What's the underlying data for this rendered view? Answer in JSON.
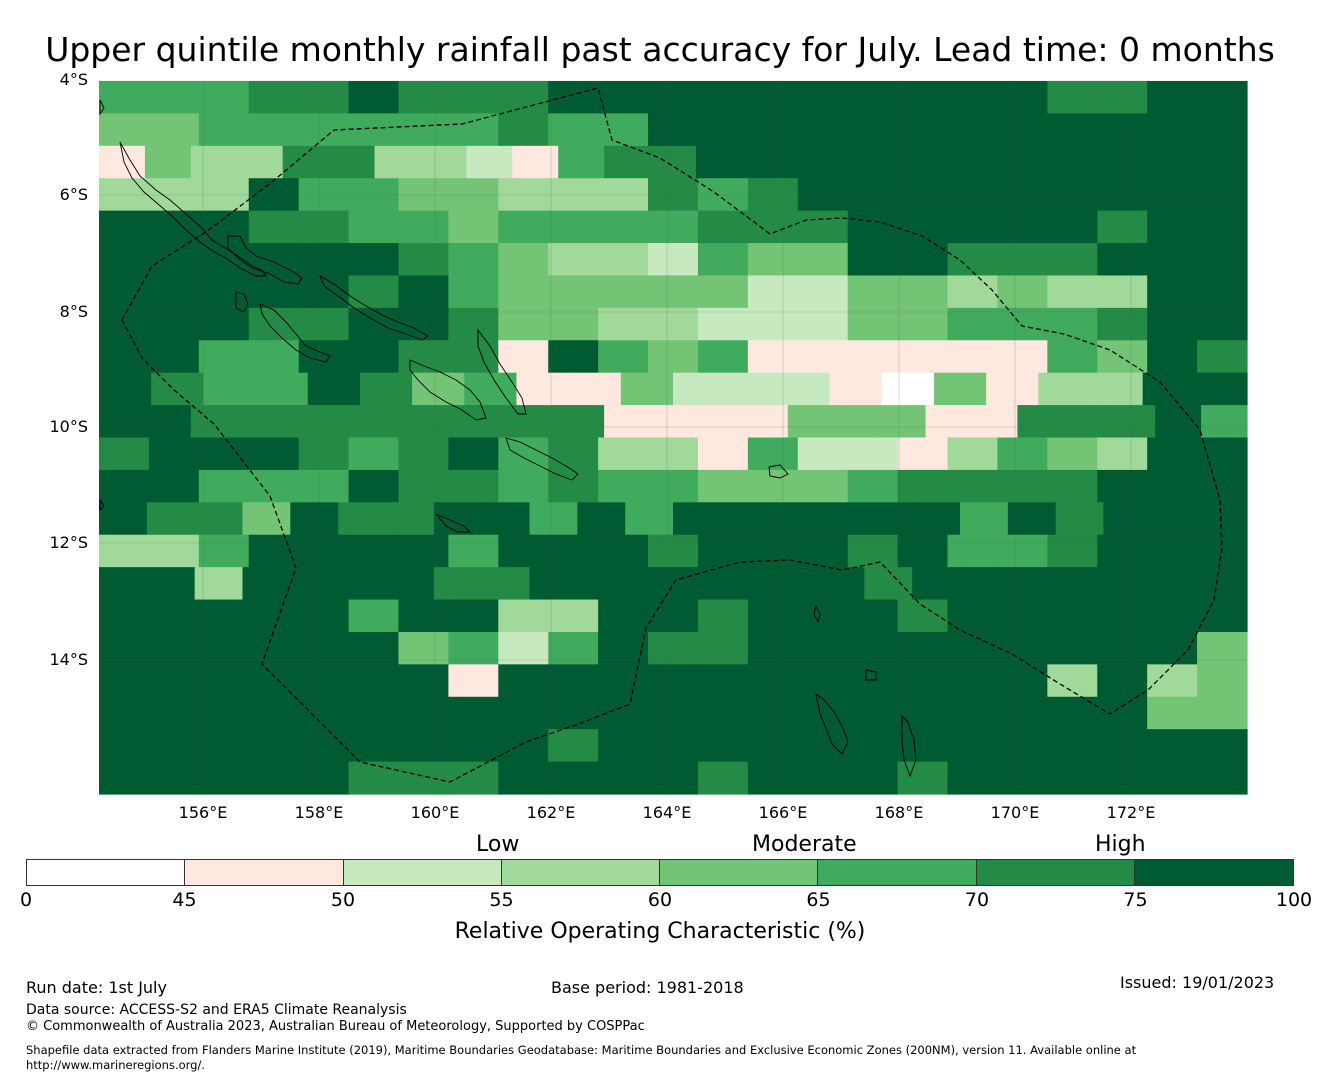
{
  "title": "Upper quintile monthly rainfall past accuracy for July. Lead time: 0 months",
  "map": {
    "type": "gridded-map",
    "lat_range": [
      -4,
      -16.3
    ],
    "lon_range": [
      154.2,
      174
    ],
    "lat_labels": [
      "4°S",
      "6°S",
      "8°S",
      "10°S",
      "12°S",
      "14°S"
    ],
    "lon_labels": [
      "156°E",
      "158°E",
      "160°E",
      "162°E",
      "164°E",
      "166°E",
      "168°E",
      "170°E",
      "172°E"
    ],
    "grid_rows": [
      "55566766688888888886688",
      "44555555655788888888888",
      "-43366332-566788888888888",
      "33375544333656777888888",
      "88866554555566688887688",
      "77887865433254477666788",
      "78887685444442244343378",
      "78766776443322244555688",
      "87558766-7545-1-1115476",
      "86558645-14222104-3378",
      "7866666666611114441166675",
      "67786567563315221354387",
      "87555766565544456666888",
      "866486687575777877576888",
      "33577885888688767556888",
      "783888766777887768877788",
      "78888587338867876877888",
      "88888745258668777888874",
      "88888881888778778883834",
      "88888888888778887888844",
      "88888888868877787778778",
      "88888666878868776777778"
    ],
    "grid_rows_note": "",
    "legend_bins": [
      {
        "from": 0,
        "to": 45,
        "color": "#ffffff"
      },
      {
        "from": 45,
        "to": 50,
        "color": "#fee8df"
      },
      {
        "from": 50,
        "to": 55,
        "color": "#c7e9c0"
      },
      {
        "from": 55,
        "to": 60,
        "color": "#a1d99b"
      },
      {
        "from": 60,
        "to": 65,
        "color": "#74c476"
      },
      {
        "from": 65,
        "to": 70,
        "color": "#41ab5d"
      },
      {
        "from": 70,
        "to": 75,
        "color": "#238b45"
      },
      {
        "from": 75,
        "to": 100,
        "color": "#005a32"
      }
    ]
  },
  "colorbar": {
    "band_labels": [
      "Low",
      "Moderate",
      "High"
    ],
    "ticks": [
      "0",
      "45",
      "50",
      "55",
      "60",
      "65",
      "70",
      "75",
      "100"
    ],
    "label": "Relative Operating Characteristic (%)"
  },
  "footer": {
    "run_date": "Run date: 1st July",
    "base_period": "Base period: 1981-2018",
    "issued": "Issued: 19/01/2023",
    "data_source": "Data source: ACCESS-S2 and ERA5 Climate Reanalysis",
    "copyright": "© Commonwealth of Australia 2023, Australian Bureau of Meteorology, Supported by COSPPac",
    "shapefile_line1": "Shapefile data extracted from Flanders Marine Institute (2019), Maritime Boundaries Geodatabase: Maritime Boundaries and Exclusive Economic Zones (200NM), version 11. Available online at",
    "shapefile_line2": "http://www.marineregions.org/."
  }
}
